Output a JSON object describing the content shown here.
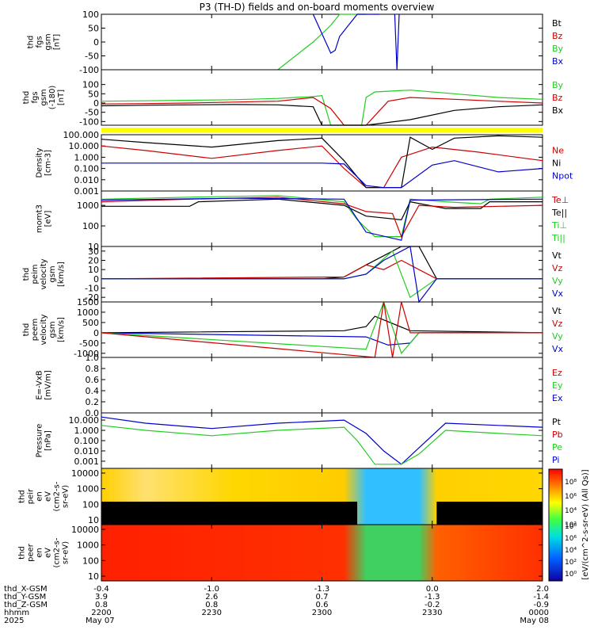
{
  "title": "P3 (TH-D) fields and on-board moments overview",
  "colors": {
    "black": "#000000",
    "red": "#cc0000",
    "green": "#22cc22",
    "blue": "#0000cc",
    "yellow": "#ffff00"
  },
  "chart_data": [
    {
      "type": "line",
      "id": "fgs_gsm",
      "ylabel": [
        "thd",
        "fgs",
        "gsm",
        "[nT]"
      ],
      "ylim": [
        -100,
        100
      ],
      "yticks": [
        "100",
        "50",
        "0",
        "-50",
        "-100"
      ],
      "legend": [
        {
          "name": "Bt",
          "color": "black"
        },
        {
          "name": "Bz",
          "color": "red"
        },
        {
          "name": "By",
          "color": "green"
        },
        {
          "name": "Bx",
          "color": "blue"
        }
      ],
      "series": [
        {
          "name": "By",
          "color": "green",
          "x": [
            0.4,
            0.48,
            0.52,
            0.54,
            0.56,
            0.6
          ],
          "y": [
            -100,
            0,
            60,
            100,
            100,
            100
          ]
        },
        {
          "name": "Bx",
          "color": "blue",
          "x": [
            0.48,
            0.52,
            0.53,
            0.54,
            0.56,
            0.58,
            0.61,
            0.63
          ],
          "y": [
            100,
            -40,
            -30,
            20,
            60,
            100,
            100,
            100
          ]
        },
        {
          "name": "Bx",
          "color": "blue",
          "x": [
            0.665,
            0.67,
            0.67,
            0.675
          ],
          "y": [
            100,
            -100,
            -100,
            100
          ]
        }
      ]
    },
    {
      "type": "line",
      "id": "fgs_gsm_lim",
      "ylabel": [
        "thd",
        "fgs",
        "gsm",
        "(-180)",
        "[nT]"
      ],
      "ylim": [
        -120,
        180
      ],
      "yticks": [
        "100",
        "50",
        "0",
        "-50",
        "-100"
      ],
      "legend": [
        {
          "name": "By",
          "color": "green"
        },
        {
          "name": "Bz",
          "color": "red"
        },
        {
          "name": "Bx",
          "color": "black"
        }
      ],
      "series": [
        {
          "name": "By",
          "color": "green",
          "x": [
            0,
            0.1,
            0.2,
            0.3,
            0.4,
            0.48,
            0.5,
            0.52,
            0.55,
            0.59,
            0.6,
            0.62,
            0.7,
            0.8,
            0.9,
            1.0
          ],
          "y": [
            10,
            12,
            15,
            18,
            25,
            35,
            40,
            -120,
            -120,
            -120,
            30,
            60,
            70,
            50,
            30,
            20
          ]
        },
        {
          "name": "Bz",
          "color": "red",
          "x": [
            0,
            0.1,
            0.2,
            0.3,
            0.4,
            0.48,
            0.52,
            0.55,
            0.6,
            0.65,
            0.7,
            0.8,
            0.9,
            1.0
          ],
          "y": [
            -5,
            -3,
            0,
            5,
            10,
            30,
            -30,
            -120,
            -120,
            10,
            30,
            20,
            10,
            0
          ]
        },
        {
          "name": "Bx",
          "color": "black",
          "x": [
            0,
            0.1,
            0.2,
            0.3,
            0.4,
            0.48,
            0.5,
            0.6,
            0.7,
            0.8,
            0.9,
            1.0
          ],
          "y": [
            -15,
            -12,
            -10,
            -8,
            -10,
            -20,
            -120,
            -120,
            -90,
            -40,
            -20,
            -10
          ]
        }
      ]
    },
    {
      "type": "line",
      "id": "density",
      "ylabel": [
        "Density",
        "[cm-3]"
      ],
      "yscale": "log",
      "ylim": [
        0.001,
        100
      ],
      "yticks": [
        "100.000",
        "10.000",
        "1.000",
        "0.100",
        "0.010",
        "0.001"
      ],
      "legend": [
        {
          "name": "Ne",
          "color": "red"
        },
        {
          "name": "Ni",
          "color": "black"
        },
        {
          "name": "Npot",
          "color": "blue"
        }
      ],
      "series": [
        {
          "name": "Ne",
          "color": "red",
          "x": [
            0,
            0.1,
            0.25,
            0.4,
            0.5,
            0.55,
            0.6,
            0.64,
            0.68,
            0.75,
            0.85,
            1.0
          ],
          "y": [
            10,
            4,
            0.8,
            4,
            10,
            0.1,
            0.002,
            0.002,
            1,
            8,
            3,
            0.5
          ]
        },
        {
          "name": "Ni",
          "color": "black",
          "x": [
            0,
            0.1,
            0.25,
            0.4,
            0.5,
            0.55,
            0.6,
            0.68,
            0.7,
            0.75,
            0.8,
            0.9,
            1.0
          ],
          "y": [
            40,
            20,
            8,
            30,
            50,
            0.5,
            0.002,
            0.002,
            60,
            5,
            50,
            80,
            60
          ]
        },
        {
          "name": "Npot",
          "color": "blue",
          "x": [
            0,
            0.1,
            0.3,
            0.5,
            0.55,
            0.6,
            0.64,
            0.68,
            0.75,
            0.8,
            0.9,
            1.0
          ],
          "y": [
            0.3,
            0.3,
            0.3,
            0.3,
            0.25,
            0.003,
            0.002,
            0.002,
            0.2,
            0.5,
            0.05,
            0.1
          ]
        }
      ]
    },
    {
      "type": "line",
      "id": "mom_t3",
      "ylabel": [
        "momt3",
        "[eV]"
      ],
      "yscale": "log",
      "ylim": [
        10,
        5000
      ],
      "yticks": [
        "1000",
        "100",
        "10"
      ],
      "legend": [
        {
          "name": "Te⊥",
          "color": "red"
        },
        {
          "name": "Te||",
          "color": "black"
        },
        {
          "name": "Ti⊥",
          "color": "green"
        },
        {
          "name": "Ti||",
          "color": "green"
        }
      ],
      "series": [
        {
          "name": "Ti",
          "color": "green",
          "x": [
            0,
            0.2,
            0.4,
            0.55,
            0.58,
            0.62,
            0.68,
            0.7,
            0.78,
            0.86,
            0.88,
            1.0
          ],
          "y": [
            2000,
            2500,
            3000,
            1500,
            200,
            30,
            30,
            2000,
            1500,
            1200,
            2000,
            2500
          ]
        },
        {
          "name": "Te",
          "color": "black",
          "x": [
            0,
            0.2,
            0.22,
            0.4,
            0.55,
            0.6,
            0.68,
            0.7,
            0.78,
            0.86,
            0.88,
            1.0
          ],
          "y": [
            900,
            900,
            1500,
            2000,
            1000,
            300,
            200,
            1500,
            700,
            700,
            1500,
            1500
          ]
        },
        {
          "name": "Te⊥",
          "color": "red",
          "x": [
            0,
            0.2,
            0.4,
            0.55,
            0.6,
            0.66,
            0.68,
            0.72,
            0.8,
            1.0
          ],
          "y": [
            1500,
            2000,
            2500,
            1200,
            500,
            400,
            30,
            1000,
            800,
            1000
          ]
        },
        {
          "name": "Ni",
          "color": "blue",
          "x": [
            0,
            0.3,
            0.55,
            0.6,
            0.68,
            0.7,
            1.0
          ],
          "y": [
            1800,
            2200,
            2000,
            50,
            20,
            1800,
            2000
          ]
        }
      ]
    },
    {
      "type": "line",
      "id": "peim_velocity",
      "ylabel": [
        "thd",
        "peim",
        "velocity",
        "gsm",
        "[km/s]"
      ],
      "ylim": [
        -25,
        35
      ],
      "yticks": [
        "30",
        "20",
        "10",
        "0",
        "-10",
        "-20"
      ],
      "legend": [
        {
          "name": "Vt",
          "color": "black"
        },
        {
          "name": "Vz",
          "color": "red"
        },
        {
          "name": "Vy",
          "color": "green"
        },
        {
          "name": "Vx",
          "color": "blue"
        }
      ],
      "series": [
        {
          "name": "Vt",
          "color": "black",
          "x": [
            0,
            0.5,
            0.55,
            0.6,
            0.64,
            0.68,
            0.72,
            0.76,
            1.0
          ],
          "y": [
            0,
            0,
            2,
            15,
            25,
            35,
            35,
            0,
            0
          ]
        },
        {
          "name": "Vz",
          "color": "red",
          "x": [
            0,
            0.55,
            0.6,
            0.64,
            0.68,
            0.72,
            0.76,
            1.0
          ],
          "y": [
            0,
            2,
            15,
            10,
            20,
            10,
            0,
            0
          ]
        },
        {
          "name": "Vy",
          "color": "green",
          "x": [
            0,
            0.55,
            0.6,
            0.66,
            0.7,
            0.76,
            1.0
          ],
          "y": [
            0,
            0,
            5,
            30,
            -20,
            0,
            0
          ]
        },
        {
          "name": "Vx",
          "color": "blue",
          "x": [
            0,
            0.55,
            0.6,
            0.64,
            0.7,
            0.72,
            0.76,
            1.0
          ],
          "y": [
            0,
            0,
            5,
            20,
            35,
            -25,
            0,
            0
          ]
        }
      ]
    },
    {
      "type": "line",
      "id": "peem_velocity",
      "ylabel": [
        "thd",
        "peem",
        "velocity",
        "gsm",
        "[km/s]"
      ],
      "ylim": [
        -1200,
        1500
      ],
      "yticks": [
        "1500",
        "1000",
        "500",
        "0",
        "-500",
        "-1000"
      ],
      "legend": [
        {
          "name": "Vt",
          "color": "black"
        },
        {
          "name": "Vz",
          "color": "red"
        },
        {
          "name": "Vy",
          "color": "green"
        },
        {
          "name": "Vx",
          "color": "blue"
        }
      ],
      "series": [
        {
          "name": "Vt",
          "color": "black",
          "x": [
            0,
            0.55,
            0.6,
            0.62,
            0.7,
            1.0
          ],
          "y": [
            0,
            100,
            300,
            800,
            100,
            0
          ]
        },
        {
          "name": "Vx",
          "color": "blue",
          "x": [
            0,
            0.6,
            0.65,
            0.7,
            0.72,
            1.0
          ],
          "y": [
            0,
            -200,
            -600,
            -500,
            0,
            0
          ]
        },
        {
          "name": "Vy",
          "color": "green",
          "x": [
            0,
            0.6,
            0.64,
            0.68,
            0.72,
            1.0
          ],
          "y": [
            0,
            -800,
            1500,
            -1000,
            0,
            0
          ]
        },
        {
          "name": "Vz",
          "color": "red",
          "x": [
            0,
            0.62,
            0.64,
            0.66,
            0.68,
            0.7,
            1.0
          ],
          "y": [
            0,
            -1200,
            1500,
            -1200,
            1500,
            0,
            0
          ]
        }
      ]
    },
    {
      "type": "line",
      "id": "e_vxb",
      "ylabel": [
        "E=-VxB",
        "[mV/m]"
      ],
      "ylim": [
        0,
        1
      ],
      "yticks": [
        "1.0",
        "0.8",
        "0.6",
        "0.4",
        "0.2",
        "0.0"
      ],
      "legend": [
        {
          "name": "Ez",
          "color": "red"
        },
        {
          "name": "Ey",
          "color": "green"
        },
        {
          "name": "Ex",
          "color": "blue"
        }
      ],
      "series": []
    },
    {
      "type": "line",
      "id": "pressure",
      "ylabel": [
        "Pressure",
        "[nPa]"
      ],
      "yscale": "log",
      "ylim": [
        0.0002,
        50
      ],
      "yticks": [
        "10.000",
        "1.000",
        "0.100",
        "0.010",
        "0.001"
      ],
      "legend": [
        {
          "name": "Pt",
          "color": "black"
        },
        {
          "name": "Pb",
          "color": "red"
        },
        {
          "name": "Pe",
          "color": "green"
        },
        {
          "name": "Pi",
          "color": "blue"
        }
      ],
      "series": [
        {
          "name": "Pi",
          "color": "blue",
          "x": [
            0,
            0.1,
            0.25,
            0.4,
            0.55,
            0.6,
            0.64,
            0.68,
            0.72,
            0.78,
            0.9,
            1.0
          ],
          "y": [
            20,
            5,
            1.5,
            5,
            10,
            0.5,
            0.01,
            0.0005,
            0.02,
            5,
            3,
            2
          ]
        },
        {
          "name": "Pe",
          "color": "green",
          "x": [
            0,
            0.1,
            0.25,
            0.4,
            0.55,
            0.58,
            0.62,
            0.68,
            0.72,
            0.78,
            0.9,
            1.0
          ],
          "y": [
            3,
            1,
            0.3,
            1,
            2,
            0.1,
            0.0005,
            0.0005,
            0.005,
            1,
            0.5,
            0.3
          ]
        }
      ]
    },
    {
      "type": "heatmap",
      "id": "peir",
      "ylabel": [
        "thd",
        "peir",
        "en",
        "eV",
        "(cm2-s-",
        "sr-eV)"
      ],
      "yscale": "log",
      "ylim": [
        5,
        20000
      ],
      "yticks": [
        "10000",
        "1000",
        "100",
        "10"
      ]
    },
    {
      "type": "heatmap",
      "id": "peer",
      "ylabel": [
        "thd",
        "peer",
        "en",
        "eV",
        "(cm2-s-",
        "sr-eV)"
      ],
      "yscale": "log",
      "ylim": [
        5,
        20000
      ],
      "yticks": [
        "10000",
        "1000",
        "100",
        "10"
      ]
    }
  ],
  "colorbar": {
    "label": "[eV/(cm^2-s-sr-eV) (All Qs)]",
    "top_ticks": [
      "10⁸",
      "10⁶",
      "10⁴",
      "10²"
    ],
    "bottom_ticks": [
      "10⁸",
      "10⁶",
      "10⁴",
      "10²",
      "10⁰"
    ]
  },
  "xaxis": {
    "rows": [
      {
        "label": "thd_X-GSM",
        "values": [
          "-0.4",
          "-1.0",
          "-1.3",
          "0.0",
          "2.0"
        ]
      },
      {
        "label": "thd_Y-GSM",
        "values": [
          "3.9",
          "2.6",
          "0.7",
          "-1.3",
          "-1.4"
        ]
      },
      {
        "label": "thd_Z-GSM",
        "values": [
          "0.8",
          "0.8",
          "0.6",
          "-0.2",
          "-0.9"
        ]
      },
      {
        "label": "hhmm",
        "values": [
          "2200",
          "2230",
          "2300",
          "2330",
          "0000"
        ]
      },
      {
        "label": "2025",
        "values": [
          "May 07",
          "",
          "",
          "",
          "May 08"
        ]
      }
    ]
  }
}
